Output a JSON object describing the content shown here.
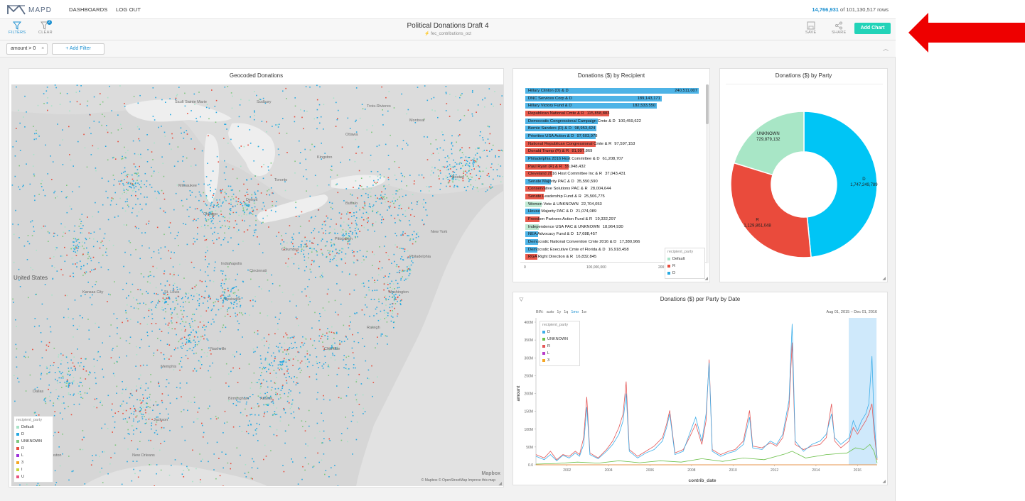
{
  "nav": {
    "logo_text": "MAPD",
    "dashboards": "DASHBOARDS",
    "logout": "LOG OUT",
    "rows_count": "14,766,931",
    "rows_total": " of 101,130,517 rows"
  },
  "toolbar": {
    "filters": "FILTERS",
    "clear": "CLEAR",
    "clear_badge": "2",
    "title": "Political Donations Draft 4",
    "subtitle": "fec_contributions_oct",
    "save": "SAVE",
    "share": "SHARE",
    "add_chart": "Add Chart"
  },
  "filterbar": {
    "chip": "amount > 0",
    "chip_x": "×",
    "add_filter": "+ Add Filter"
  },
  "map_panel": {
    "title": "Geocoded Donations",
    "labels": [
      "Sault Sainte Marie",
      "Sudbury",
      "Trois-Rivieres",
      "Ottawa",
      "Montreal",
      "Kingston",
      "Toronto",
      "United States",
      "Milwaukee",
      "Chicago",
      "Detroit",
      "Buffalo",
      "Boston",
      "New York",
      "Philadelphia",
      "Washington",
      "Pittsburgh",
      "Columbus",
      "Indianapolis",
      "Cincinnati",
      "Louisville",
      "Nashville",
      "Memphis",
      "Atlanta",
      "Birmingham",
      "Charlotte",
      "Raleigh",
      "St. Louis",
      "Kansas City",
      "Dallas",
      "Houston",
      "New Orleans",
      "Jackson"
    ],
    "legend": {
      "title": "recipient_party",
      "items": [
        {
          "label": "Default",
          "color": "#a6e3c7"
        },
        {
          "label": "D",
          "color": "#27a9e1"
        },
        {
          "label": "UNKNOWN",
          "color": "#7ec77e"
        },
        {
          "label": "R",
          "color": "#e74c3c"
        },
        {
          "label": "L",
          "color": "#9b30d9"
        },
        {
          "label": "3",
          "color": "#f5a623"
        },
        {
          "label": "I",
          "color": "#c6d63a"
        },
        {
          "label": "U",
          "color": "#e8557f"
        }
      ]
    },
    "attribution": "© Mapbox  © OpenStreetMap  Improve this map",
    "mapbox": "Mapbox"
  },
  "recipient_panel": {
    "title": "Donations ($) by Recipient",
    "rows": [
      {
        "label": "Hillary Clinton (D) & D",
        "value": "240,511,007",
        "party": "D",
        "amount": 240511007
      },
      {
        "label": "DNC Services Corp & D",
        "value": "189,143,171",
        "party": "D",
        "amount": 189143171
      },
      {
        "label": "Hillary Victory Fund & D",
        "value": "182,533,550",
        "party": "D",
        "amount": 182533550
      },
      {
        "label": "Republican National Cmte & R",
        "value": "115,858,883",
        "party": "R",
        "amount": 115858883
      },
      {
        "label": "Democratic Congressional Campaign Cmte & D",
        "value": "100,459,622",
        "party": "D",
        "amount": 100459622
      },
      {
        "label": "Bernie Sanders (D) & D",
        "value": "98,953,424",
        "party": "D",
        "amount": 98953424
      },
      {
        "label": "Priorities USA Action & D",
        "value": "97,603,978",
        "party": "D",
        "amount": 97603978
      },
      {
        "label": "National Republican Congressional Cmte & R",
        "value": "97,597,153",
        "party": "R",
        "amount": 97597153
      },
      {
        "label": "Donald Trump (R) & R",
        "value": "81,997,869",
        "party": "R",
        "amount": 81997869
      },
      {
        "label": "Philadelphia 2016 Host Committee & D",
        "value": "61,208,707",
        "party": "D",
        "amount": 61208707
      },
      {
        "label": "Paul Ryan (R) & R",
        "value": "59,948,432",
        "party": "R",
        "amount": 59948432
      },
      {
        "label": "Cleveland 2016 Host Committee Inc & R",
        "value": "37,043,431",
        "party": "R",
        "amount": 37043431
      },
      {
        "label": "Senate Majority PAC & D",
        "value": "35,550,590",
        "party": "D",
        "amount": 35550590
      },
      {
        "label": "Conservative Solutions PAC & R",
        "value": "28,004,644",
        "party": "R",
        "amount": 28004644
      },
      {
        "label": "Senate Leadership Fund & R",
        "value": "25,506,775",
        "party": "R",
        "amount": 25506775
      },
      {
        "label": "Women Vote & UNKNOWN",
        "value": "22,704,053",
        "party": "UNKNOWN",
        "amount": 22704053
      },
      {
        "label": "House Majority PAC & D",
        "value": "21,074,089",
        "party": "D",
        "amount": 21074089
      },
      {
        "label": "Freedom Partners Action Fund & R",
        "value": "19,332,297",
        "party": "R",
        "amount": 19332297
      },
      {
        "label": "Independence USA PAC & UNKNOWN",
        "value": "18,964,930",
        "party": "UNKNOWN",
        "amount": 18964930
      },
      {
        "label": "NEA Advocacy Fund & D",
        "value": "17,688,457",
        "party": "D",
        "amount": 17688457
      },
      {
        "label": "Democratic National Convention Cmte 2016 & D",
        "value": "17,380,966",
        "party": "D",
        "amount": 17380966
      },
      {
        "label": "Democratic Executive Cmte of Florida & D",
        "value": "16,918,458",
        "party": "D",
        "amount": 16918458
      },
      {
        "label": "RGA Right Direction & R",
        "value": "16,832,845",
        "party": "R",
        "amount": 16832845
      }
    ],
    "axis_ticks": [
      "0",
      "100,000,000",
      "200"
    ],
    "legend": {
      "title": "recipient_party",
      "items": [
        {
          "label": "Default",
          "color": "#a6e3c7"
        },
        {
          "label": "R",
          "color": "#e74c3c"
        },
        {
          "label": "D",
          "color": "#27a9e1"
        }
      ]
    }
  },
  "party_panel": {
    "title": "Donations ($) by Party"
  },
  "chart_data": [
    {
      "type": "pie",
      "title": "Donations ($) by Party",
      "slices": [
        {
          "label": "D",
          "value": 1747249789,
          "value_text": "1,747,249,789",
          "color": "#00c5f5"
        },
        {
          "label": "R",
          "value": 1129861048,
          "value_text": "1,129,861,048",
          "color": "#ea4b3c"
        },
        {
          "label": "UNKNOWN",
          "value": 729879132,
          "value_text": "729,879,132",
          "color": "#a8e6c6"
        }
      ]
    },
    {
      "type": "line",
      "title": "Donations ($) per Party by Date",
      "xlabel": "contrib_date",
      "ylabel": "amount",
      "ylim": [
        0,
        420000000
      ],
      "ytick_labels": [
        "0.0",
        "50M",
        "100M",
        "150M",
        "200M",
        "250M",
        "300M",
        "350M",
        "400M"
      ],
      "xtick_labels": [
        "2002",
        "2004",
        "2006",
        "2008",
        "2010",
        "2012",
        "2014",
        "2016"
      ],
      "x_start": 2000.5,
      "x_end": 2016.95,
      "series": [
        {
          "name": "D",
          "color": "#3daee9",
          "points": [
            [
              2000.5,
              25
            ],
            [
              2000.9,
              15
            ],
            [
              2001.2,
              30
            ],
            [
              2001.5,
              12
            ],
            [
              2001.8,
              28
            ],
            [
              2002.1,
              20
            ],
            [
              2002.4,
              35
            ],
            [
              2002.6,
              25
            ],
            [
              2002.8,
              60
            ],
            [
              2002.95,
              170
            ],
            [
              2003.1,
              30
            ],
            [
              2003.5,
              18
            ],
            [
              2003.9,
              40
            ],
            [
              2004.2,
              60
            ],
            [
              2004.5,
              90
            ],
            [
              2004.7,
              130
            ],
            [
              2004.85,
              210
            ],
            [
              2005.0,
              40
            ],
            [
              2005.4,
              20
            ],
            [
              2005.8,
              35
            ],
            [
              2006.2,
              45
            ],
            [
              2006.6,
              70
            ],
            [
              2006.8,
              110
            ],
            [
              2006.95,
              150
            ],
            [
              2007.2,
              30
            ],
            [
              2007.6,
              40
            ],
            [
              2007.9,
              90
            ],
            [
              2008.2,
              140
            ],
            [
              2008.5,
              70
            ],
            [
              2008.7,
              150
            ],
            [
              2008.85,
              300
            ],
            [
              2009.0,
              40
            ],
            [
              2009.4,
              25
            ],
            [
              2009.8,
              35
            ],
            [
              2010.1,
              40
            ],
            [
              2010.5,
              60
            ],
            [
              2010.8,
              140
            ],
            [
              2010.95,
              50
            ],
            [
              2011.4,
              45
            ],
            [
              2011.8,
              70
            ],
            [
              2012.1,
              60
            ],
            [
              2012.4,
              90
            ],
            [
              2012.7,
              190
            ],
            [
              2012.85,
              415
            ],
            [
              2013.0,
              70
            ],
            [
              2013.4,
              40
            ],
            [
              2013.8,
              60
            ],
            [
              2014.2,
              70
            ],
            [
              2014.5,
              90
            ],
            [
              2014.75,
              150
            ],
            [
              2014.9,
              80
            ],
            [
              2015.2,
              60
            ],
            [
              2015.6,
              80
            ],
            [
              2015.8,
              130
            ],
            [
              2016.0,
              100
            ],
            [
              2016.2,
              130
            ],
            [
              2016.4,
              150
            ],
            [
              2016.55,
              180
            ],
            [
              2016.7,
              320
            ],
            [
              2016.8,
              130
            ],
            [
              2016.95,
              20
            ]
          ]
        },
        {
          "name": "UNKNOWN",
          "color": "#6cc04a",
          "points": [
            [
              2000.5,
              2
            ],
            [
              2001.5,
              4
            ],
            [
              2002.5,
              8
            ],
            [
              2003.5,
              5
            ],
            [
              2004.5,
              12
            ],
            [
              2005.5,
              6
            ],
            [
              2006.5,
              12
            ],
            [
              2007.5,
              8
            ],
            [
              2008.5,
              18
            ],
            [
              2009.5,
              10
            ],
            [
              2010.5,
              20
            ],
            [
              2011.5,
              15
            ],
            [
              2012.5,
              32
            ],
            [
              2012.85,
              40
            ],
            [
              2013.5,
              20
            ],
            [
              2014.5,
              30
            ],
            [
              2015.5,
              35
            ],
            [
              2015.9,
              50
            ],
            [
              2016.3,
              45
            ],
            [
              2016.6,
              60
            ],
            [
              2016.8,
              40
            ],
            [
              2016.95,
              5
            ]
          ]
        },
        {
          "name": "R",
          "color": "#e45757",
          "points": [
            [
              2000.5,
              30
            ],
            [
              2000.9,
              20
            ],
            [
              2001.2,
              40
            ],
            [
              2001.5,
              15
            ],
            [
              2001.8,
              30
            ],
            [
              2002.1,
              25
            ],
            [
              2002.4,
              40
            ],
            [
              2002.6,
              30
            ],
            [
              2002.8,
              80
            ],
            [
              2002.95,
              200
            ],
            [
              2003.1,
              35
            ],
            [
              2003.5,
              20
            ],
            [
              2003.9,
              45
            ],
            [
              2004.2,
              70
            ],
            [
              2004.5,
              110
            ],
            [
              2004.7,
              150
            ],
            [
              2004.85,
              245
            ],
            [
              2005.0,
              45
            ],
            [
              2005.4,
              25
            ],
            [
              2005.8,
              40
            ],
            [
              2006.2,
              55
            ],
            [
              2006.6,
              80
            ],
            [
              2006.8,
              120
            ],
            [
              2006.95,
              160
            ],
            [
              2007.2,
              35
            ],
            [
              2007.6,
              45
            ],
            [
              2007.9,
              80
            ],
            [
              2008.2,
              120
            ],
            [
              2008.5,
              60
            ],
            [
              2008.7,
              130
            ],
            [
              2008.85,
              310
            ],
            [
              2009.0,
              45
            ],
            [
              2009.4,
              30
            ],
            [
              2009.8,
              40
            ],
            [
              2010.1,
              45
            ],
            [
              2010.5,
              70
            ],
            [
              2010.8,
              160
            ],
            [
              2010.95,
              55
            ],
            [
              2011.4,
              50
            ],
            [
              2011.8,
              65
            ],
            [
              2012.1,
              55
            ],
            [
              2012.4,
              80
            ],
            [
              2012.7,
              170
            ],
            [
              2012.85,
              360
            ],
            [
              2013.0,
              60
            ],
            [
              2013.4,
              45
            ],
            [
              2013.8,
              55
            ],
            [
              2014.2,
              60
            ],
            [
              2014.5,
              80
            ],
            [
              2014.75,
              180
            ],
            [
              2014.9,
              70
            ],
            [
              2015.2,
              50
            ],
            [
              2015.6,
              70
            ],
            [
              2015.8,
              110
            ],
            [
              2016.0,
              90
            ],
            [
              2016.2,
              110
            ],
            [
              2016.4,
              130
            ],
            [
              2016.55,
              150
            ],
            [
              2016.7,
              180
            ],
            [
              2016.8,
              100
            ],
            [
              2016.95,
              15
            ]
          ]
        },
        {
          "name": "L",
          "color": "#b83ec9",
          "points": [
            [
              2000.5,
              0
            ],
            [
              2016.95,
              0
            ]
          ]
        },
        {
          "name": "3",
          "color": "#f5a623",
          "points": [
            [
              2000.5,
              0
            ],
            [
              2016.95,
              0
            ]
          ]
        }
      ],
      "brush": {
        "from": 2015.58,
        "to": 2016.92
      }
    }
  ],
  "line_panel": {
    "title": "Donations ($) per Party by Date",
    "bin_label": "BIN:",
    "bins": [
      "auto",
      "1y",
      "1q",
      "1mo",
      "1w"
    ],
    "active_bin": "1mo",
    "date_range": "Aug 01, 2015  –  Dec 01, 2016",
    "legend": {
      "title": "recipient_party",
      "items": [
        {
          "label": "D",
          "color": "#3daee9"
        },
        {
          "label": "UNKNOWN",
          "color": "#6cc04a"
        },
        {
          "label": "R",
          "color": "#e45757"
        },
        {
          "label": "L",
          "color": "#b83ec9"
        },
        {
          "label": "3",
          "color": "#f5a623"
        }
      ]
    }
  },
  "annotation": {
    "arrow_color": "#ee0000"
  }
}
